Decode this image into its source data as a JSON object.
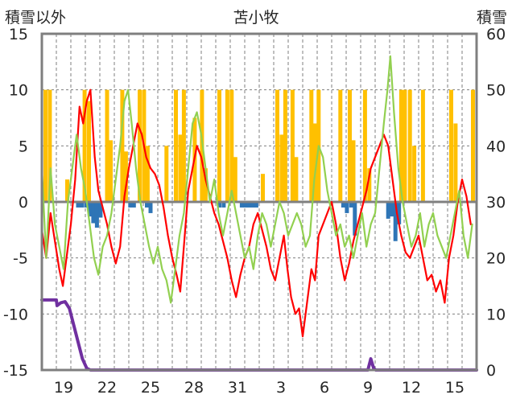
{
  "chart_data": {
    "type": "line",
    "title": "苫小牧",
    "left_axis_label": "積雪以外",
    "right_axis_label": "積雪",
    "ylim_left": [
      -15,
      15
    ],
    "ylim_right": [
      0,
      60
    ],
    "yticks_left": [
      15,
      10,
      5,
      0,
      -5,
      -10,
      -15
    ],
    "yticks_right": [
      60,
      50,
      40,
      30,
      20,
      10,
      0
    ],
    "xlim": [
      0,
      30
    ],
    "x_tick_positions": [
      1.5,
      4.5,
      7.5,
      10.5,
      13.5,
      16.5,
      19.5,
      22.5,
      25.5,
      28.5
    ],
    "x_tick_labels": [
      "19",
      "22",
      "25",
      "28",
      "31",
      "3",
      "6",
      "9",
      "12",
      "15"
    ],
    "grid": "vertical-dashed-daily, horizontal-dashed-at-10-and-5-steps",
    "colors": {
      "frame": "#7f7f7f",
      "grid": "#7f7f7f",
      "zero_line": "#808080",
      "precip_bars": "#ffc000",
      "sunshine_bars": "#2e75b6",
      "red_series": "#ff0000",
      "green_series": "#92d050",
      "snow_series": "#7030a0"
    },
    "bars_precip": [
      [
        0.25,
        10
      ],
      [
        0.55,
        10
      ],
      [
        1.75,
        2
      ],
      [
        2.95,
        10
      ],
      [
        3.25,
        9
      ],
      [
        4.5,
        10
      ],
      [
        4.75,
        5.5
      ],
      [
        5.55,
        10
      ],
      [
        5.8,
        4.5
      ],
      [
        6.75,
        10
      ],
      [
        7.05,
        10
      ],
      [
        7.3,
        5
      ],
      [
        8.6,
        5
      ],
      [
        9.25,
        10
      ],
      [
        9.55,
        6
      ],
      [
        9.8,
        10
      ],
      [
        10.55,
        7.5
      ],
      [
        11.05,
        10
      ],
      [
        11.3,
        3
      ],
      [
        12.25,
        10
      ],
      [
        12.8,
        10
      ],
      [
        13.1,
        10
      ],
      [
        13.35,
        4
      ],
      [
        15.25,
        2.5
      ],
      [
        16.25,
        10
      ],
      [
        16.55,
        6
      ],
      [
        16.8,
        10
      ],
      [
        17.3,
        10
      ],
      [
        17.55,
        4
      ],
      [
        18.6,
        10
      ],
      [
        18.85,
        7
      ],
      [
        19.1,
        10
      ],
      [
        20.6,
        10
      ],
      [
        21.25,
        10
      ],
      [
        21.5,
        5.5
      ],
      [
        22.3,
        10
      ],
      [
        22.6,
        3
      ],
      [
        24.8,
        10
      ],
      [
        25.05,
        10
      ],
      [
        25.4,
        10
      ],
      [
        25.7,
        5
      ],
      [
        26.3,
        10
      ],
      [
        28.25,
        10
      ],
      [
        28.55,
        7
      ],
      [
        29.75,
        10
      ]
    ],
    "bars_sunshine": [
      [
        2.5,
        -0.5
      ],
      [
        2.75,
        -0.5
      ],
      [
        3.05,
        -0.5
      ],
      [
        3.3,
        -1.3
      ],
      [
        3.55,
        -1.9
      ],
      [
        3.8,
        -2.3
      ],
      [
        4.05,
        -1.4
      ],
      [
        6.1,
        -0.5
      ],
      [
        6.35,
        -0.5
      ],
      [
        7.25,
        -0.5
      ],
      [
        7.5,
        -1
      ],
      [
        12.25,
        -0.5
      ],
      [
        12.55,
        -0.5
      ],
      [
        13.8,
        -0.5
      ],
      [
        14.05,
        -0.5
      ],
      [
        14.3,
        -0.5
      ],
      [
        14.55,
        -0.5
      ],
      [
        14.8,
        -0.5
      ],
      [
        20.8,
        -0.5
      ],
      [
        21.05,
        -1
      ],
      [
        21.35,
        -0.5
      ],
      [
        21.6,
        -3
      ],
      [
        23.9,
        -1.5
      ],
      [
        24.15,
        -1.3
      ],
      [
        24.4,
        -3.5
      ],
      [
        24.65,
        -2
      ]
    ],
    "series": [
      {
        "color_key": "red_series",
        "axis": "left",
        "values": [
          [
            0,
            -2.5
          ],
          [
            0.3,
            -5
          ],
          [
            0.6,
            -1
          ],
          [
            0.9,
            -3.5
          ],
          [
            1.2,
            -6
          ],
          [
            1.45,
            -7.5
          ],
          [
            1.7,
            -5
          ],
          [
            2,
            -2
          ],
          [
            2.3,
            2
          ],
          [
            2.6,
            8.5
          ],
          [
            2.85,
            7
          ],
          [
            3.1,
            9
          ],
          [
            3.35,
            10
          ],
          [
            3.65,
            4
          ],
          [
            3.9,
            1
          ],
          [
            4.2,
            -0.5
          ],
          [
            4.5,
            -2
          ],
          [
            4.8,
            -4
          ],
          [
            5.1,
            -5.5
          ],
          [
            5.4,
            -4
          ],
          [
            5.7,
            0.5
          ],
          [
            6,
            3
          ],
          [
            6.3,
            5
          ],
          [
            6.6,
            7
          ],
          [
            6.9,
            6
          ],
          [
            7.2,
            4
          ],
          [
            7.5,
            3
          ],
          [
            7.8,
            2.5
          ],
          [
            8.1,
            1.5
          ],
          [
            8.4,
            -0.5
          ],
          [
            8.7,
            -3
          ],
          [
            9,
            -5
          ],
          [
            9.3,
            -6.5
          ],
          [
            9.55,
            -8
          ],
          [
            9.8,
            -4
          ],
          [
            10.1,
            1
          ],
          [
            10.4,
            3
          ],
          [
            10.7,
            5
          ],
          [
            11,
            4
          ],
          [
            11.3,
            2
          ],
          [
            11.6,
            0.5
          ],
          [
            11.9,
            -1
          ],
          [
            12.2,
            -2
          ],
          [
            12.5,
            -3.5
          ],
          [
            12.8,
            -5
          ],
          [
            13.1,
            -7
          ],
          [
            13.4,
            -8.5
          ],
          [
            13.7,
            -6.5
          ],
          [
            14,
            -5
          ],
          [
            14.3,
            -4
          ],
          [
            14.6,
            -2
          ],
          [
            14.9,
            -1
          ],
          [
            15.2,
            -2.5
          ],
          [
            15.5,
            -4
          ],
          [
            15.8,
            -6
          ],
          [
            16.1,
            -7
          ],
          [
            16.4,
            -5
          ],
          [
            16.7,
            -3
          ],
          [
            16.95,
            -6
          ],
          [
            17.2,
            -8.5
          ],
          [
            17.5,
            -10
          ],
          [
            17.75,
            -9.5
          ],
          [
            18,
            -12
          ],
          [
            18.3,
            -9
          ],
          [
            18.6,
            -6
          ],
          [
            18.85,
            -7
          ],
          [
            19.1,
            -3
          ],
          [
            19.4,
            -2
          ],
          [
            19.7,
            -1
          ],
          [
            20,
            0
          ],
          [
            20.3,
            -2
          ],
          [
            20.6,
            -5
          ],
          [
            20.9,
            -7
          ],
          [
            21.2,
            -5.5
          ],
          [
            21.5,
            -3.5
          ],
          [
            21.8,
            -2
          ],
          [
            22.1,
            -0.5
          ],
          [
            22.4,
            1
          ],
          [
            22.7,
            3
          ],
          [
            23,
            4
          ],
          [
            23.3,
            5
          ],
          [
            23.6,
            6
          ],
          [
            23.9,
            5
          ],
          [
            24.2,
            2
          ],
          [
            24.5,
            -1
          ],
          [
            24.8,
            -3
          ],
          [
            25.1,
            -4.5
          ],
          [
            25.4,
            -5
          ],
          [
            25.7,
            -4
          ],
          [
            26,
            -3
          ],
          [
            26.3,
            -5
          ],
          [
            26.6,
            -7
          ],
          [
            26.9,
            -6.5
          ],
          [
            27.2,
            -8
          ],
          [
            27.5,
            -7
          ],
          [
            27.8,
            -9
          ],
          [
            28.1,
            -5
          ],
          [
            28.4,
            -3
          ],
          [
            28.7,
            0
          ],
          [
            29,
            2
          ],
          [
            29.3,
            0.5
          ],
          [
            29.6,
            -2
          ]
        ]
      },
      {
        "color_key": "green_series",
        "axis": "left",
        "values": [
          [
            0,
            3
          ],
          [
            0.3,
            -5
          ],
          [
            0.6,
            3
          ],
          [
            0.9,
            -2
          ],
          [
            1.2,
            -4
          ],
          [
            1.5,
            -6
          ],
          [
            1.8,
            0
          ],
          [
            2.1,
            3
          ],
          [
            2.4,
            6
          ],
          [
            2.7,
            3
          ],
          [
            3,
            1
          ],
          [
            3.3,
            -2
          ],
          [
            3.6,
            -5
          ],
          [
            3.9,
            -6.5
          ],
          [
            4.2,
            -4
          ],
          [
            4.5,
            -3
          ],
          [
            4.8,
            -1
          ],
          [
            5.1,
            2
          ],
          [
            5.4,
            5
          ],
          [
            5.7,
            9
          ],
          [
            5.95,
            10
          ],
          [
            6.2,
            7
          ],
          [
            6.5,
            3
          ],
          [
            6.8,
            0
          ],
          [
            7.1,
            -2
          ],
          [
            7.4,
            -4
          ],
          [
            7.7,
            -5.5
          ],
          [
            8,
            -4
          ],
          [
            8.3,
            -6
          ],
          [
            8.6,
            -7
          ],
          [
            8.9,
            -9
          ],
          [
            9.2,
            -6
          ],
          [
            9.5,
            -3
          ],
          [
            9.8,
            -1
          ],
          [
            10.1,
            3
          ],
          [
            10.4,
            7
          ],
          [
            10.7,
            8
          ],
          [
            11,
            6
          ],
          [
            11.3,
            3
          ],
          [
            11.6,
            0
          ],
          [
            11.9,
            2
          ],
          [
            12.2,
            -1
          ],
          [
            12.5,
            -3
          ],
          [
            12.8,
            -1
          ],
          [
            13.1,
            1
          ],
          [
            13.4,
            -1
          ],
          [
            13.7,
            -3
          ],
          [
            14,
            -5
          ],
          [
            14.3,
            -4
          ],
          [
            14.6,
            -6
          ],
          [
            14.9,
            -3
          ],
          [
            15.2,
            -1
          ],
          [
            15.5,
            -2
          ],
          [
            15.8,
            -4
          ],
          [
            16.1,
            -2
          ],
          [
            16.4,
            0
          ],
          [
            16.7,
            -1
          ],
          [
            17,
            -3
          ],
          [
            17.3,
            -2
          ],
          [
            17.6,
            -1
          ],
          [
            17.9,
            -2
          ],
          [
            18.2,
            -4
          ],
          [
            18.5,
            -3
          ],
          [
            18.8,
            2
          ],
          [
            19.1,
            5
          ],
          [
            19.4,
            4
          ],
          [
            19.7,
            1
          ],
          [
            20,
            -1
          ],
          [
            20.3,
            -3
          ],
          [
            20.6,
            -2
          ],
          [
            20.9,
            -4
          ],
          [
            21.2,
            -3
          ],
          [
            21.5,
            -5
          ],
          [
            21.8,
            -3
          ],
          [
            22.1,
            -1
          ],
          [
            22.4,
            -4
          ],
          [
            22.7,
            -2
          ],
          [
            23,
            -1
          ],
          [
            23.3,
            3
          ],
          [
            23.6,
            7
          ],
          [
            23.85,
            10
          ],
          [
            24.05,
            13
          ],
          [
            24.3,
            8
          ],
          [
            24.6,
            3
          ],
          [
            24.9,
            0
          ],
          [
            25.2,
            -2
          ],
          [
            25.5,
            -4
          ],
          [
            25.8,
            -3
          ],
          [
            26.1,
            -1
          ],
          [
            26.4,
            -4
          ],
          [
            26.7,
            -2
          ],
          [
            27,
            -1
          ],
          [
            27.3,
            -3
          ],
          [
            27.6,
            -4
          ],
          [
            27.9,
            -5
          ],
          [
            28.2,
            -3
          ],
          [
            28.5,
            -1
          ],
          [
            28.8,
            1
          ],
          [
            29.1,
            -3
          ],
          [
            29.4,
            -5
          ],
          [
            29.7,
            -2
          ]
        ]
      },
      {
        "color_key": "snow_series",
        "axis": "right",
        "values": [
          [
            0,
            12.5
          ],
          [
            1,
            12.5
          ],
          [
            1.05,
            11.5
          ],
          [
            1.3,
            12
          ],
          [
            1.6,
            12.2
          ],
          [
            1.9,
            11
          ],
          [
            2.2,
            8
          ],
          [
            2.5,
            5
          ],
          [
            2.8,
            2
          ],
          [
            3.1,
            0.3
          ],
          [
            3.35,
            0
          ],
          [
            22.5,
            0
          ],
          [
            22.7,
            2
          ],
          [
            22.9,
            0.3
          ],
          [
            23.05,
            0
          ],
          [
            30,
            0
          ]
        ]
      }
    ]
  }
}
